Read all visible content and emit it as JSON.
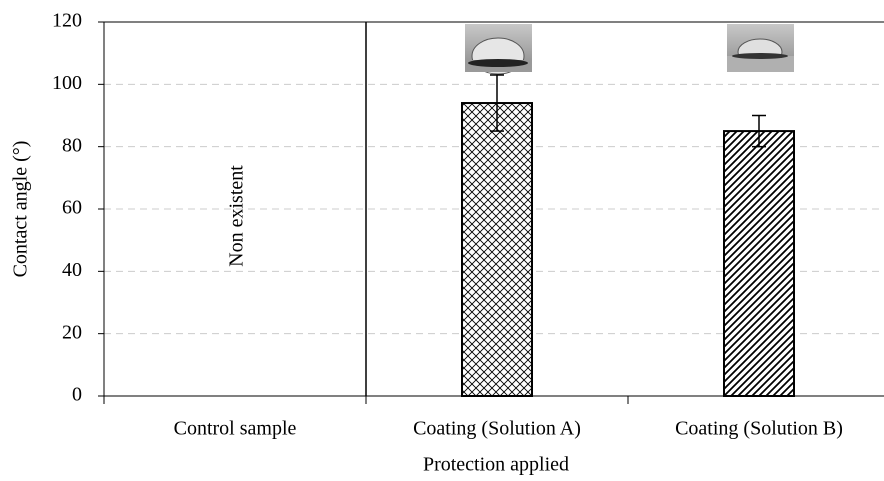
{
  "chart_data": {
    "type": "bar",
    "y_label": "Contact angle (°)",
    "x_label": "Protection applied",
    "annotation": "Non existent",
    "categories": [
      "Control sample",
      "Coating (Solution A)",
      "Coating (Solution B)"
    ],
    "values": [
      null,
      94,
      85
    ],
    "errors": [
      null,
      9,
      5
    ],
    "ylim": [
      0,
      120
    ],
    "yticks": [
      0,
      20,
      40,
      60,
      80,
      100,
      120
    ],
    "grid": true
  }
}
